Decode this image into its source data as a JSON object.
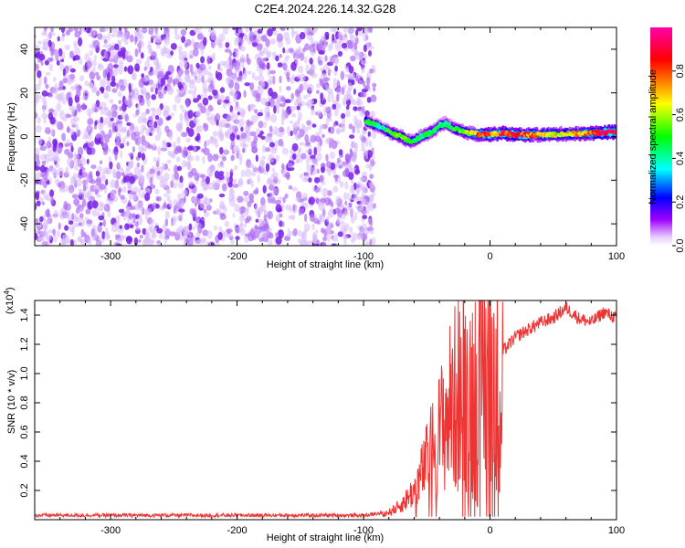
{
  "chart_data": [
    {
      "type": "heatmap",
      "title": "C2E4.2024.226.14.32.G28",
      "xlabel": "Height of straight line (km)",
      "ylabel": "Frequency (Hz)",
      "xlim": [
        -360,
        100
      ],
      "ylim": [
        -50,
        50
      ],
      "x_ticks": [
        -300,
        -200,
        -100,
        0,
        100
      ],
      "y_ticks": [
        -40,
        -20,
        0,
        20,
        40
      ],
      "colorbar": {
        "label": "Normalized spectral amplitude",
        "range": [
          0,
          1
        ],
        "ticks": [
          0.0,
          0.2,
          0.4,
          0.6,
          0.8
        ],
        "colors": [
          "#ffffff",
          "#a000ff",
          "#0000ff",
          "#00ffff",
          "#00ff00",
          "#ffff00",
          "#ff0000",
          "#ff00aa"
        ]
      },
      "noise_region_km": [
        -360,
        -95
      ],
      "ridge": {
        "x": [
          -98,
          -92,
          -85,
          -80,
          -75,
          -70,
          -65,
          -60,
          -55,
          -50,
          -45,
          -40,
          -35,
          -30,
          -25,
          -20,
          -15,
          -10,
          -5,
          0,
          5,
          10,
          20,
          40,
          60,
          80,
          90,
          100
        ],
        "y": [
          7,
          5.5,
          4,
          2,
          1,
          0,
          -2,
          -2,
          0,
          1,
          2.5,
          5,
          6,
          4,
          3,
          2,
          1.5,
          1,
          1,
          1,
          1.2,
          1.5,
          0.8,
          0.8,
          1.2,
          1.5,
          2,
          2
        ],
        "amp": [
          0.5,
          0.45,
          0.4,
          0.5,
          0.55,
          0.55,
          0.5,
          0.45,
          0.45,
          0.45,
          0.45,
          0.45,
          0.45,
          0.45,
          0.5,
          0.55,
          0.6,
          0.75,
          0.85,
          0.8,
          0.7,
          0.85,
          0.85,
          0.7,
          0.65,
          0.75,
          0.95,
          0.95
        ]
      }
    },
    {
      "type": "line",
      "xlabel": "Height of straight line (km)",
      "ylabel": "SNR (10 * v/v)",
      "y_scale_label": "(x10",
      "y_scale_exp": "4",
      "y_scale_close": ")",
      "xlim": [
        -360,
        100
      ],
      "ylim": [
        0,
        1.5
      ],
      "x_ticks": [
        -300,
        -200,
        -100,
        0,
        100
      ],
      "y_ticks": [
        0.2,
        0.4,
        0.6,
        0.8,
        1.0,
        1.2,
        1.4
      ],
      "line_color": "#ee3333",
      "series": [
        {
          "name": "SNR",
          "x": [
            -360,
            -100,
            -80,
            -70,
            -60,
            -55,
            -50,
            -45,
            -40,
            -35,
            -30,
            -25,
            -20,
            -15,
            -10,
            -5,
            0,
            5,
            10,
            15,
            20,
            30,
            40,
            50,
            60,
            70,
            80,
            90,
            100
          ],
          "y": [
            0.03,
            0.03,
            0.05,
            0.1,
            0.2,
            0.3,
            0.4,
            0.5,
            0.6,
            0.7,
            0.8,
            0.85,
            0.9,
            0.85,
            0.95,
            1.0,
            1.05,
            0.9,
            1.15,
            1.2,
            1.25,
            1.3,
            1.35,
            1.38,
            1.45,
            1.38,
            1.35,
            1.42,
            1.38
          ]
        }
      ]
    }
  ]
}
